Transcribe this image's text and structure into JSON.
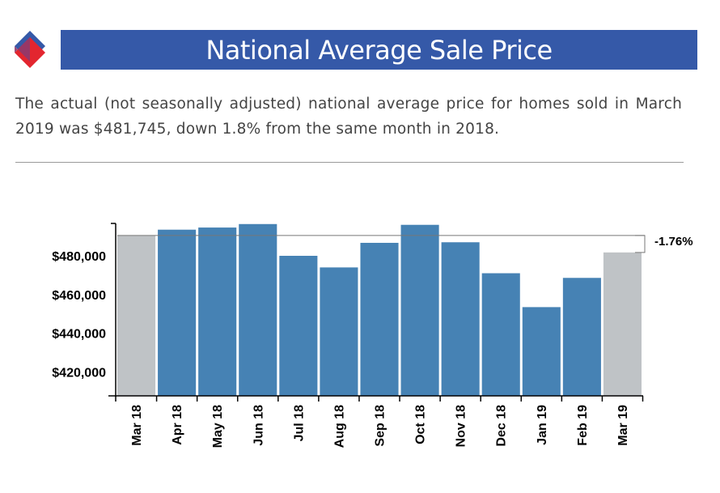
{
  "header": {
    "title": "National Average Sale Price"
  },
  "description": "The actual (not seasonally adjusted) national average price for homes sold in March 2019 was $481,745, down 1.8% from the same month in 2018.",
  "colors": {
    "title_bar": "#3559a8",
    "bar_primary": "#4682b4",
    "bar_compare": "#bfc3c6",
    "logo_blue": "#3559a8",
    "logo_red": "#e3262f"
  },
  "chart_data": {
    "type": "bar",
    "categories": [
      "Mar 18",
      "Apr 18",
      "May 18",
      "Jun 18",
      "Jul 18",
      "Aug 18",
      "Sep 18",
      "Oct 18",
      "Nov 18",
      "Dec 18",
      "Jan 19",
      "Feb 19",
      "Mar 19"
    ],
    "values": [
      490500,
      493500,
      494600,
      496400,
      480000,
      474000,
      486700,
      496000,
      487000,
      471000,
      453500,
      468600,
      481745
    ],
    "highlighted": [
      "Mar 18",
      "Mar 19"
    ],
    "ylim": [
      402000,
      502000
    ],
    "y_ticks": [
      420000,
      440000,
      460000,
      480000
    ],
    "y_tick_labels": [
      "$420,000",
      "$440,000",
      "$460,000",
      "$480,000"
    ],
    "annotation": "-1.76%",
    "title": "",
    "xlabel": "",
    "ylabel": "",
    "grid": false
  }
}
